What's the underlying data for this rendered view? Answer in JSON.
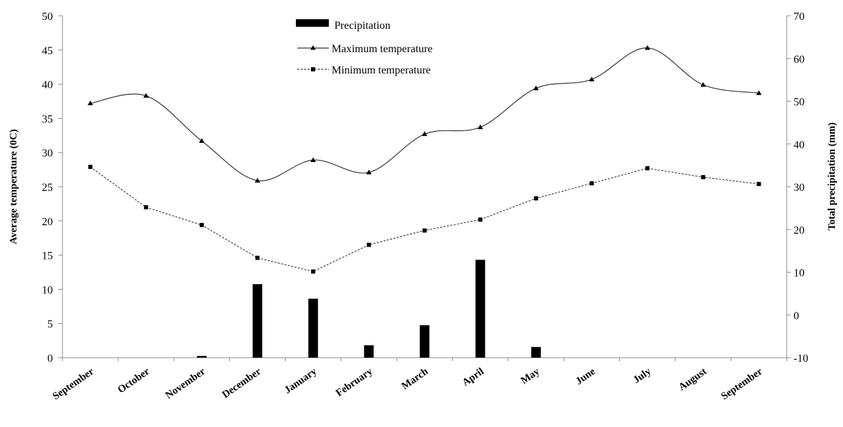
{
  "chart_data": {
    "type": "bar+line",
    "categories": [
      "September",
      "October",
      "November",
      "December",
      "January",
      "February",
      "March",
      "April",
      "May",
      "June",
      "July",
      "August",
      "September"
    ],
    "series": [
      {
        "name": "Precipitation",
        "type": "bar",
        "axis": "right",
        "values": [
          -10,
          -10,
          -9.6,
          7.2,
          3.8,
          -7.1,
          -2.4,
          12.9,
          -7.5,
          -10,
          -10,
          -10,
          -10
        ],
        "color": "#000000"
      },
      {
        "name": "Maximum temperature",
        "type": "line",
        "axis": "left",
        "marker": "triangle",
        "values": [
          37.2,
          38.3,
          31.7,
          25.9,
          28.9,
          27.1,
          32.7,
          33.7,
          39.4,
          40.7,
          45.3,
          39.9,
          38.7
        ],
        "color": "#333333"
      },
      {
        "name": "Minimum temperature",
        "type": "line",
        "axis": "left",
        "marker": "square",
        "dash": true,
        "values": [
          27.9,
          22.0,
          19.4,
          14.6,
          12.6,
          16.5,
          18.6,
          20.2,
          23.3,
          25.5,
          27.7,
          26.4,
          25.4
        ],
        "color": "#333333"
      }
    ],
    "ylabel": "Average temperature (0C)",
    "ylabel_right": "Total precipitation (mm)",
    "ylim": [
      0,
      50
    ],
    "ylim_right": [
      -10,
      70
    ],
    "yticks": [
      "0",
      "5",
      "10",
      "15",
      "20",
      "25",
      "30",
      "35",
      "40",
      "45",
      "50"
    ],
    "yticks_right": [
      "-10",
      "0",
      "10",
      "20",
      "30",
      "40",
      "50",
      "60",
      "70"
    ],
    "legend": [
      "Precipitation",
      "Maximum temperature",
      "Minimum temperature"
    ],
    "legend_position": "top-center",
    "grid": false
  }
}
